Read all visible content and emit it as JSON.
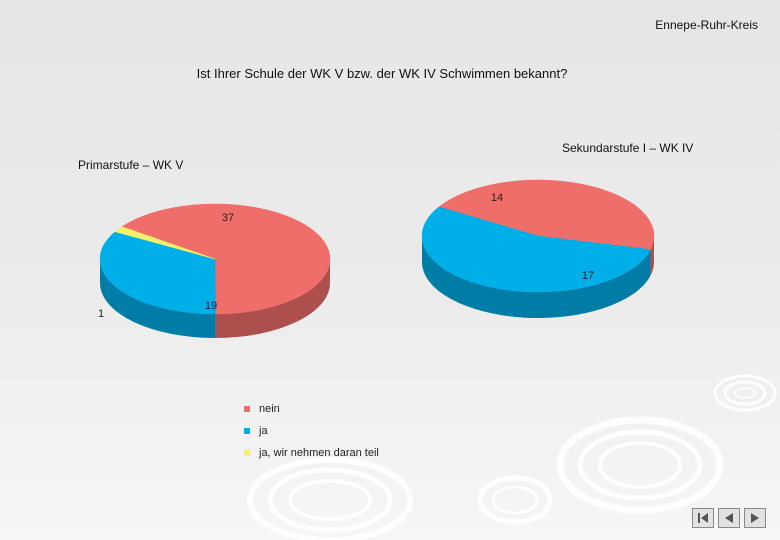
{
  "header": {
    "region": "Ennepe-Ruhr-Kreis"
  },
  "slide_title": "Ist Ihrer Schule der WK V bzw. der WK IV Schwimmen bekannt?",
  "colors": {
    "nein": "#f06e6a",
    "ja": "#00aee8",
    "ja_teil": "#f5f06a"
  },
  "chart_data": [
    {
      "type": "pie",
      "title": "Primarstufe – WK V",
      "slices": [
        {
          "label": "nein",
          "value": 37
        },
        {
          "label": "ja",
          "value": 19
        },
        {
          "label": "ja, wir nehmen daran teil",
          "value": 1
        }
      ],
      "legend": "bottom"
    },
    {
      "type": "pie",
      "title": "Sekundarstufe I – WK IV",
      "slices": [
        {
          "label": "nein",
          "value": 14
        },
        {
          "label": "ja",
          "value": 17
        }
      ],
      "legend": "bottom"
    }
  ],
  "legend": {
    "items": [
      {
        "label": "nein",
        "color": "#f06e6a"
      },
      {
        "label": "ja",
        "color": "#00aee8"
      },
      {
        "label": "ja, wir nehmen daran teil",
        "color": "#f5f06a"
      }
    ]
  },
  "nav": {
    "first_icon": "first-slide-icon",
    "prev_icon": "previous-slide-icon",
    "next_icon": "next-slide-icon"
  }
}
